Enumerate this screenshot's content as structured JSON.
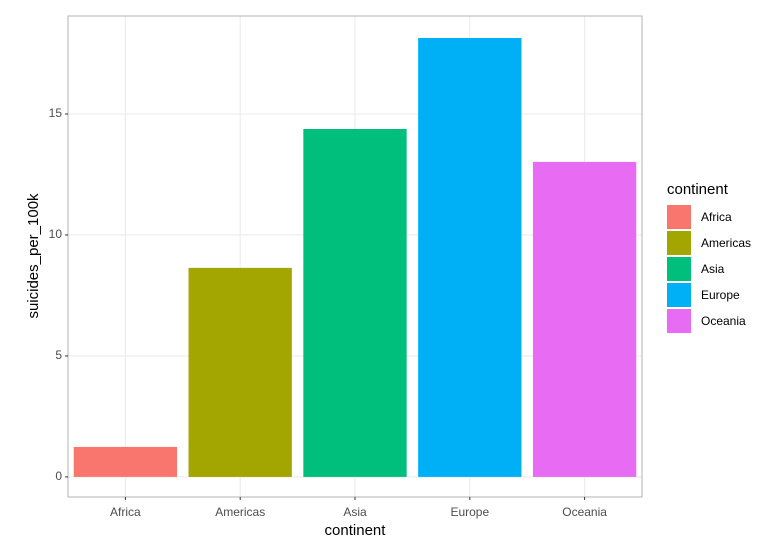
{
  "chart_data": {
    "type": "bar",
    "x_label": "continent",
    "y_label": "suicides_per_100k",
    "legend_title": "continent",
    "categories": [
      "Africa",
      "Americas",
      "Asia",
      "Europe",
      "Oceania"
    ],
    "values": [
      1.24,
      8.64,
      14.38,
      18.14,
      13.02
    ],
    "colors": [
      "#f8766d",
      "#a3a500",
      "#00bf7d",
      "#00b0f6",
      "#e76bf3"
    ],
    "ylim": [
      -0.83,
      19.05
    ],
    "yticks": [
      0,
      5,
      10,
      15
    ],
    "grid": true
  }
}
